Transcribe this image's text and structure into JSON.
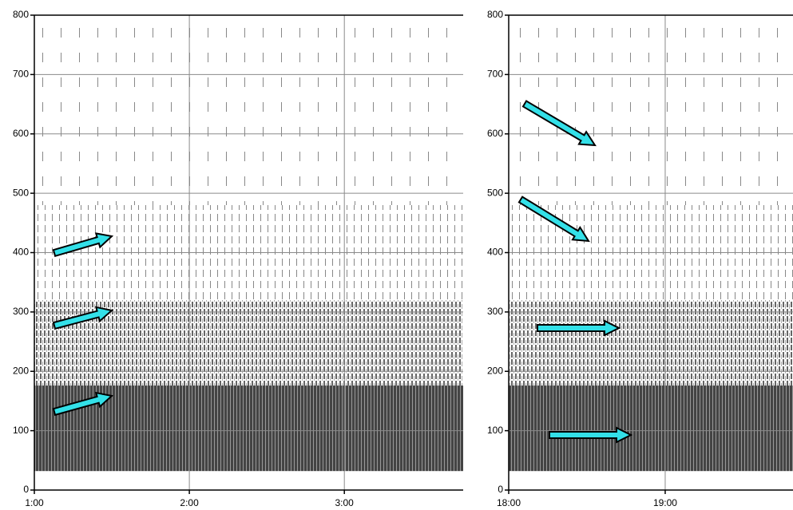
{
  "chart_data": [
    {
      "type": "spectrogram",
      "xlim": [
        60,
        226
      ],
      "ylim": [
        0,
        800
      ],
      "xticks": [
        {
          "value": 60,
          "label": "1:00"
        },
        {
          "value": 120,
          "label": "2:00"
        },
        {
          "value": 180,
          "label": "3:00"
        }
      ],
      "yticks": [
        0,
        100,
        200,
        300,
        400,
        500,
        600,
        700,
        800
      ],
      "grid": true
    },
    {
      "type": "spectrogram",
      "xlim": [
        1080,
        1189
      ],
      "ylim": [
        0,
        800
      ],
      "xticks": [
        {
          "value": 1080,
          "label": "18:00"
        },
        {
          "value": 1140,
          "label": "19:00"
        }
      ],
      "yticks": [
        0,
        100,
        200,
        300,
        400,
        500,
        600,
        700,
        800
      ],
      "grid": true
    }
  ]
}
